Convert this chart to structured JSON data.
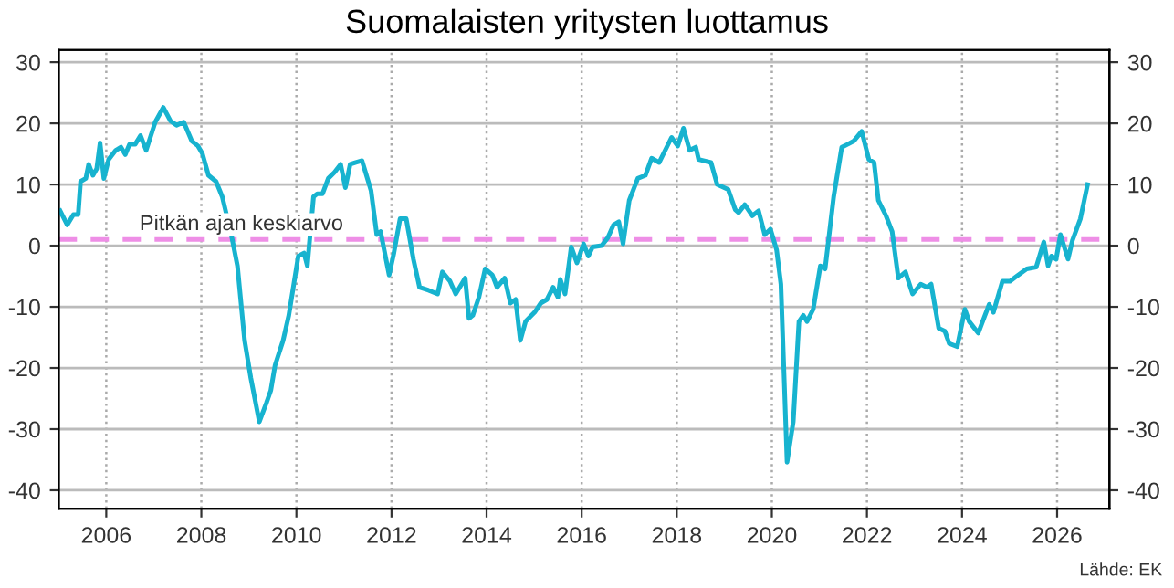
{
  "chart_data": {
    "type": "line",
    "title": "Suomalaisten yritysten luottamus",
    "x": [
      2005.03,
      2005.18,
      2005.31,
      2005.41,
      2005.46,
      2005.57,
      2005.63,
      2005.72,
      2005.8,
      2005.87,
      2005.95,
      2006.05,
      2006.2,
      2006.31,
      2006.4,
      2006.49,
      2006.61,
      2006.72,
      2006.84,
      2007.03,
      2007.2,
      2007.35,
      2007.48,
      2007.63,
      2007.8,
      2007.93,
      2008.02,
      2008.15,
      2008.31,
      2008.44,
      2008.63,
      2008.76,
      2008.91,
      2009.04,
      2009.22,
      2009.37,
      2009.46,
      2009.55,
      2009.72,
      2009.84,
      2010.04,
      2010.16,
      2010.23,
      2010.36,
      2010.44,
      2010.55,
      2010.67,
      2010.8,
      2010.93,
      2011.03,
      2011.13,
      2011.25,
      2011.38,
      2011.57,
      2011.69,
      2011.77,
      2011.95,
      2012.05,
      2012.18,
      2012.31,
      2012.46,
      2012.59,
      2012.78,
      2012.97,
      2013.07,
      2013.23,
      2013.35,
      2013.55,
      2013.63,
      2013.71,
      2013.84,
      2013.97,
      2014.12,
      2014.22,
      2014.38,
      2014.5,
      2014.61,
      2014.71,
      2014.82,
      2015.01,
      2015.14,
      2015.27,
      2015.4,
      2015.5,
      2015.55,
      2015.65,
      2015.78,
      2015.9,
      2016.04,
      2016.14,
      2016.23,
      2016.42,
      2016.55,
      2016.67,
      2016.78,
      2016.87,
      2017.0,
      2017.18,
      2017.34,
      2017.47,
      2017.63,
      2017.89,
      2018.02,
      2018.14,
      2018.27,
      2018.4,
      2018.46,
      2018.72,
      2018.85,
      2019.08,
      2019.23,
      2019.3,
      2019.43,
      2019.59,
      2019.72,
      2019.85,
      2019.97,
      2020.1,
      2020.19,
      2020.32,
      2020.45,
      2020.57,
      2020.66,
      2020.74,
      2020.87,
      2021.02,
      2021.12,
      2021.3,
      2021.47,
      2021.6,
      2021.72,
      2021.89,
      2022.04,
      2022.15,
      2022.24,
      2022.4,
      2022.53,
      2022.66,
      2022.81,
      2022.96,
      2023.13,
      2023.26,
      2023.35,
      2023.51,
      2023.64,
      2023.73,
      2023.9,
      2024.06,
      2024.15,
      2024.34,
      2024.57,
      2024.66,
      2024.85,
      2025.01,
      2025.13,
      2025.36,
      2025.56,
      2025.72,
      2025.81,
      2025.88,
      2025.98,
      2026.07,
      2026.23,
      2026.32,
      2026.49,
      2026.64
    ],
    "series": [
      {
        "color": "#17b3cf",
        "values": [
          5.7,
          3.4,
          5.1,
          5.1,
          10.5,
          11,
          13.3,
          11.5,
          12.6,
          16.8,
          11,
          14.1,
          15.6,
          16.1,
          14.9,
          16.6,
          16.6,
          18,
          15.6,
          20.2,
          22.6,
          20.4,
          19.7,
          20.2,
          17.1,
          16.3,
          15.1,
          11.5,
          10.5,
          8,
          1.8,
          -3.3,
          -15.5,
          -21.6,
          -28.8,
          -25.7,
          -23.7,
          -19.6,
          -15.5,
          -11.4,
          -1.7,
          -1.2,
          -3.3,
          8,
          8.5,
          8.5,
          11,
          12,
          13.3,
          9.5,
          13.3,
          13.6,
          13.9,
          9,
          1.8,
          2.3,
          -4.8,
          -1.2,
          4.4,
          4.4,
          -2.2,
          -6.8,
          -7.3,
          -7.9,
          -4.3,
          -5.8,
          -7.9,
          -5.3,
          -11.9,
          -11.4,
          -8.4,
          -3.8,
          -4.8,
          -6.8,
          -5.3,
          -9.4,
          -8.8,
          -15.5,
          -12.4,
          -10.9,
          -9.4,
          -8.8,
          -6.8,
          -8.4,
          -5.5,
          -7.9,
          -0.2,
          -2.8,
          0.3,
          -1.7,
          -0.2,
          0,
          1.3,
          3.4,
          3.9,
          0.3,
          7.4,
          11,
          11.5,
          14.3,
          13.6,
          17.7,
          16.3,
          19.2,
          15.6,
          16.1,
          14.1,
          13.6,
          10,
          9.2,
          5.9,
          5.4,
          6.7,
          4.9,
          5.7,
          1.8,
          2.7,
          -0.7,
          -6.3,
          -35.4,
          -28.8,
          -12.4,
          -11.4,
          -12.4,
          -10.4,
          -3.3,
          -3.8,
          8,
          16.1,
          16.6,
          17.1,
          18.7,
          14.1,
          13.6,
          7.4,
          4.9,
          2.3,
          -5.3,
          -4.3,
          -7.9,
          -6.3,
          -6.8,
          -6.3,
          -13.5,
          -14,
          -16,
          -16.5,
          -10.4,
          -12.4,
          -14.3,
          -9.6,
          -10.9,
          -5.8,
          -5.8,
          -5.1,
          -3.8,
          -3.5,
          0.6,
          -3.3,
          -1.7,
          -2.2,
          1.8,
          -2.2,
          0.8,
          4.4,
          10
        ]
      }
    ],
    "ref_lines": [
      {
        "axis": "y",
        "value": 1,
        "label": "Pitkän ajan keskiarvo",
        "color": "#ee8ee6",
        "line_style": "dashed"
      }
    ],
    "xlim": [
      2005,
      2027.1
    ],
    "xticks": [
      2006,
      2008,
      2010,
      2012,
      2014,
      2016,
      2018,
      2020,
      2022,
      2024,
      2026
    ],
    "ylim": [
      -43,
      32
    ],
    "yticks": [
      -40,
      -30,
      -20,
      -10,
      0,
      10,
      20,
      30
    ],
    "y2lim": [
      -43,
      32
    ],
    "y2ticks": [
      -40,
      -30,
      -20,
      -10,
      0,
      10,
      20,
      30
    ],
    "grid": true,
    "line_style": "solid",
    "marker": "none",
    "annotations": [
      "Lähde: EK"
    ]
  }
}
